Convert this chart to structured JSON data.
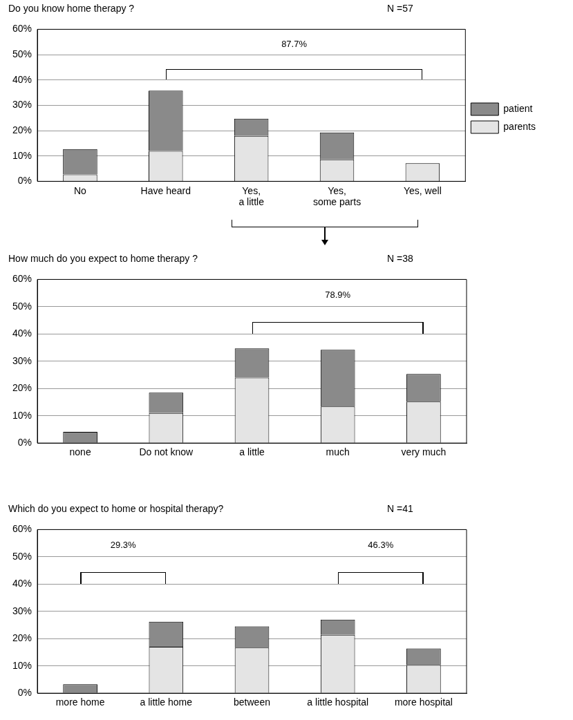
{
  "chart_data": [
    {
      "type": "bar",
      "title": "Do you know home therapy  ?",
      "subtitle": "N =57",
      "categories": [
        "No",
        "Have heard",
        "Yes,\na little",
        "Yes,\nsome parts",
        "Yes, well"
      ],
      "stacked": true,
      "series": [
        {
          "name": "parents",
          "color": "#e4e4e4",
          "values": [
            2.7,
            12,
            17.9,
            8.6,
            7.1
          ]
        },
        {
          "name": "patient",
          "color": "#8a8a8a",
          "values": [
            10,
            23.8,
            6.8,
            10.7,
            0
          ]
        }
      ],
      "ylim": [
        0,
        60
      ],
      "yticks": [
        {
          "value": 0,
          "label": "0%"
        },
        {
          "value": 10,
          "label": "10%"
        },
        {
          "value": 20,
          "label": "20%"
        },
        {
          "value": 30,
          "label": "30%"
        },
        {
          "value": 40,
          "label": "40%"
        },
        {
          "value": 50,
          "label": "50%"
        },
        {
          "value": 60,
          "label": "60%"
        }
      ],
      "grid": "y",
      "legend": "right",
      "annotations": [
        "87.7%"
      ]
    },
    {
      "type": "bar",
      "title": "How much do you expect to home therapy ?",
      "subtitle": "N =38",
      "categories": [
        "none",
        "Do not know",
        "a little",
        "much",
        "very much"
      ],
      "stacked": true,
      "series": [
        {
          "color": "#e4e4e4",
          "values": [
            0,
            11,
            24,
            13.4,
            15.2
          ]
        },
        {
          "color": "#8a8a8a",
          "values": [
            4.1,
            7.5,
            10.7,
            20.8,
            10.1
          ]
        }
      ],
      "ylim": [
        0,
        60
      ],
      "yticks": [
        {
          "value": 0,
          "label": "0%"
        },
        {
          "value": 10,
          "label": "10%"
        },
        {
          "value": 20,
          "label": "20%"
        },
        {
          "value": 30,
          "label": "30%"
        },
        {
          "value": 40,
          "label": "40%"
        },
        {
          "value": 50,
          "label": "50%"
        },
        {
          "value": 60,
          "label": "60%"
        }
      ],
      "grid": "y",
      "annotations": [
        "78.9%"
      ]
    },
    {
      "type": "bar",
      "title": "Which do you expect to home or hospital therapy?",
      "subtitle": "N =41",
      "categories": [
        "more home",
        "a little home",
        "between",
        "a little hospital",
        "more hospital"
      ],
      "stacked": true,
      "series": [
        {
          "color": "#e4e4e4",
          "values": [
            0,
            17,
            16.7,
            21.4,
            10.4
          ]
        },
        {
          "color": "#8a8a8a",
          "values": [
            3.3,
            9.2,
            7.8,
            5.6,
            6
          ]
        }
      ],
      "ylim": [
        0,
        60
      ],
      "yticks": [
        {
          "value": 0,
          "label": "0%"
        },
        {
          "value": 10,
          "label": "10%"
        },
        {
          "value": 20,
          "label": "20%"
        },
        {
          "value": 30,
          "label": "30%"
        },
        {
          "value": 40,
          "label": "40%"
        },
        {
          "value": 50,
          "label": "50%"
        },
        {
          "value": 60,
          "label": "60%"
        }
      ],
      "grid": "y",
      "annotations": [
        "29.3%",
        "46.3%"
      ]
    }
  ]
}
